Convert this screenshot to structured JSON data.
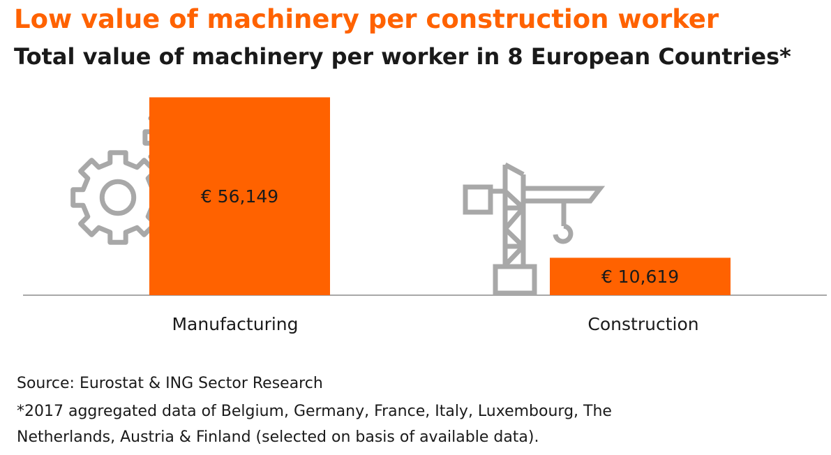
{
  "title": "Low value of machinery per construction worker",
  "subtitle": "Total value of machinery per worker in 8 European Countries*",
  "source": "Source: Eurostat & ING Sector Research",
  "footnote_line1": "*2017 aggregated data of Belgium, Germany, France, Italy, Luxembourg, The",
  "footnote_line2": "Netherlands, Austria & Finland (selected on basis of available data).",
  "colors": {
    "bar": "#FF6200",
    "icon": "#A8A8A8",
    "baseline": "#A8A8A8"
  },
  "icons": [
    "gear-icon",
    "gear-icon",
    "crane-icon"
  ],
  "chart_data": {
    "type": "bar",
    "categories": [
      "Manufacturing",
      "Construction"
    ],
    "values": [
      56149,
      10619
    ],
    "value_labels": [
      "€ 56,149",
      "€ 10,619"
    ],
    "title": "Low value of machinery per construction worker",
    "subtitle": "Total value of machinery per worker in 8 European Countries*",
    "ylim": [
      0,
      60000
    ],
    "grid": false,
    "legend": "none"
  }
}
